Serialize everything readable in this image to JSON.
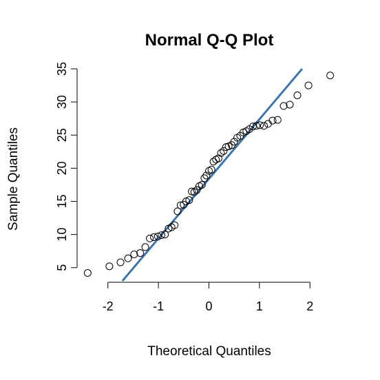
{
  "chart_data": {
    "type": "scatter",
    "title": "Normal Q-Q Plot",
    "xlabel": "Theoretical Quantiles",
    "ylabel": "Sample Quantiles",
    "xlim": [
      -2.5,
      2.5
    ],
    "ylim": [
      3,
      35
    ],
    "x_ticks": [
      -2,
      -1,
      0,
      1,
      2
    ],
    "x_tick_labels": [
      "-2",
      "-1",
      "0",
      "1",
      "2"
    ],
    "y_ticks": [
      5,
      10,
      15,
      20,
      25,
      30,
      35
    ],
    "y_tick_labels": [
      "5",
      "10",
      "15",
      "20",
      "25",
      "30",
      "35"
    ],
    "grid": false,
    "point_color": "#000000",
    "line_color": "#3a75b0",
    "reference_line": {
      "intercept": 18.4,
      "slope": 9.0
    },
    "points": {
      "x": [
        -2.4,
        -1.97,
        -1.75,
        -1.6,
        -1.48,
        -1.36,
        -1.26,
        -1.17,
        -1.09,
        -1.01,
        -0.94,
        -0.87,
        -0.8,
        -0.74,
        -0.68,
        -0.62,
        -0.56,
        -0.5,
        -0.45,
        -0.39,
        -0.34,
        -0.29,
        -0.24,
        -0.19,
        -0.14,
        -0.09,
        -0.05,
        0.0,
        0.05,
        0.09,
        0.14,
        0.19,
        0.24,
        0.29,
        0.34,
        0.39,
        0.45,
        0.5,
        0.56,
        0.62,
        0.68,
        0.74,
        0.8,
        0.87,
        0.94,
        1.01,
        1.09,
        1.17,
        1.26,
        1.36,
        1.48,
        1.6,
        1.75,
        1.97,
        2.4
      ],
      "y": [
        4.2,
        5.2,
        5.8,
        6.4,
        7.0,
        7.2,
        8.1,
        9.4,
        9.6,
        9.7,
        9.9,
        10.0,
        10.9,
        11.1,
        11.4,
        13.5,
        14.4,
        14.5,
        15.0,
        15.2,
        16.5,
        16.4,
        16.7,
        17.3,
        17.5,
        18.5,
        18.9,
        19.6,
        19.8,
        21.0,
        21.3,
        21.5,
        22.3,
        22.6,
        23.2,
        23.3,
        23.5,
        24.0,
        24.6,
        24.9,
        25.4,
        25.6,
        25.9,
        26.3,
        26.4,
        26.5,
        26.4,
        26.7,
        27.2,
        27.3,
        29.4,
        29.6,
        31.0,
        32.5,
        34.0
      ]
    }
  }
}
